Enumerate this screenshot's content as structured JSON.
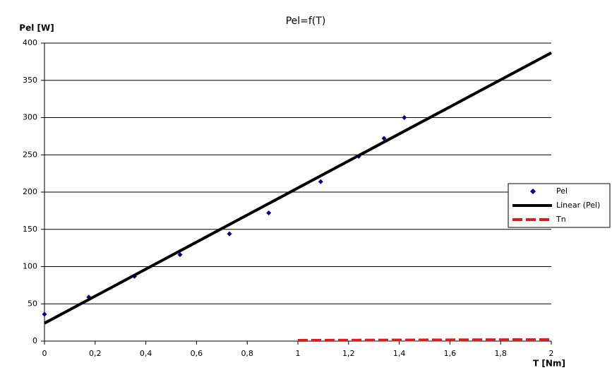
{
  "chart_data": {
    "type": "scatter",
    "title": "Pel=f(T)",
    "y_label": "Pel [W]",
    "x_label": "T [Nm]",
    "xlim": [
      0,
      2
    ],
    "ylim": [
      0,
      400
    ],
    "xticks": [
      0,
      {
        "value": 0.2,
        "label": "0,2"
      },
      {
        "value": 0.4,
        "label": "0,4"
      },
      {
        "value": 0.6,
        "label": "0,6"
      },
      {
        "value": 0.8,
        "label": "0,8"
      },
      1,
      {
        "value": 1.2,
        "label": "1,2"
      },
      {
        "value": 1.4,
        "label": "1,4"
      },
      {
        "value": 1.6,
        "label": "1,6"
      },
      {
        "value": 1.8,
        "label": "1,8"
      },
      2
    ],
    "yticks": [
      0,
      50,
      100,
      150,
      200,
      250,
      300,
      350,
      400
    ],
    "grid": true,
    "legend": "right",
    "series": [
      {
        "name": "Pel",
        "kind": "markers",
        "color": "#000080",
        "x": [
          0,
          0.175,
          0.355,
          0.535,
          0.73,
          0.885,
          1.09,
          1.24,
          1.34,
          1.42
        ],
        "values": [
          36,
          59,
          87,
          116,
          144,
          172,
          214,
          248,
          272,
          300
        ]
      },
      {
        "name": "Linear (Pel)",
        "kind": "line",
        "dashed": false,
        "color": "#000000",
        "x": [
          0,
          2
        ],
        "values": [
          24,
          387
        ]
      },
      {
        "name": "Tn",
        "kind": "line",
        "dashed": true,
        "color": "#e31a1c",
        "x": [
          1,
          2
        ],
        "values": [
          1,
          2
        ]
      }
    ]
  }
}
